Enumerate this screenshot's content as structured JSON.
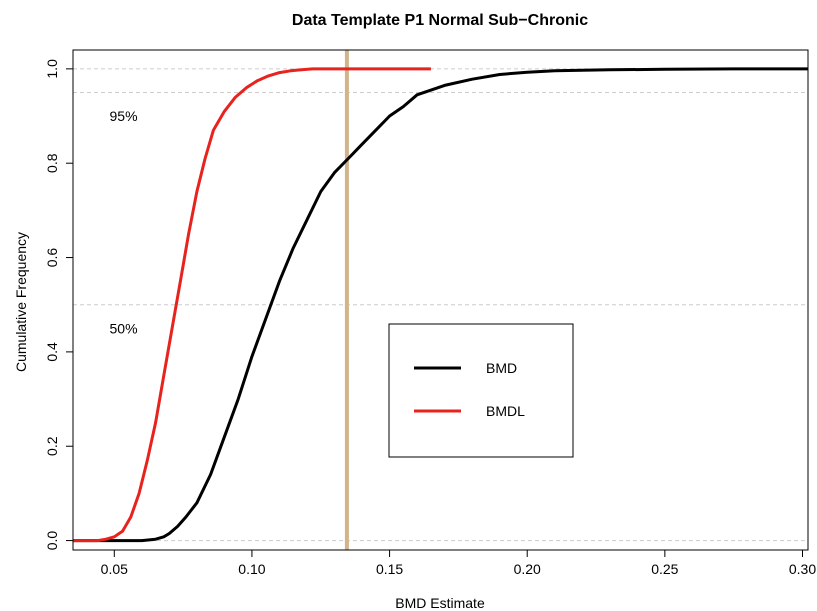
{
  "chart_data": {
    "type": "line",
    "title": "Data Template P1 Normal Sub−Chronic",
    "xlabel": "BMD Estimate",
    "ylabel": "Cumulative Frequency",
    "xlim": [
      0.035,
      0.302
    ],
    "ylim": [
      -0.02,
      1.04
    ],
    "xticks": [
      0.05,
      0.1,
      0.15,
      0.2,
      0.25,
      0.3
    ],
    "xtick_labels": [
      "0.05",
      "0.10",
      "0.15",
      "0.20",
      "0.25",
      "0.30"
    ],
    "yticks": [
      0.0,
      0.2,
      0.4,
      0.6,
      0.8,
      1.0
    ],
    "ytick_labels": [
      "0.0",
      "0.2",
      "0.4",
      "0.6",
      "0.8",
      "1.0"
    ],
    "reference_lines": {
      "horizontal": [
        0.0,
        0.5,
        0.95,
        1.0
      ],
      "horizontal_color": "#cccccc",
      "vertical_x": 0.1345,
      "vertical_color": "#d2b48c"
    },
    "annotations": [
      {
        "text": "95%",
        "x": 0.041,
        "y": 0.9
      },
      {
        "text": "50%",
        "x": 0.041,
        "y": 0.45
      }
    ],
    "legend": {
      "placement": "center",
      "entries": [
        {
          "name": "BMD",
          "color": "#000000"
        },
        {
          "name": "BMDL",
          "color": "#e8231e"
        }
      ]
    },
    "series": [
      {
        "name": "BMD",
        "color": "#000000",
        "x": [
          0.035,
          0.05,
          0.06,
          0.065,
          0.068,
          0.07,
          0.073,
          0.076,
          0.08,
          0.085,
          0.09,
          0.095,
          0.1,
          0.105,
          0.11,
          0.115,
          0.12,
          0.125,
          0.13,
          0.135,
          0.14,
          0.145,
          0.15,
          0.155,
          0.16,
          0.17,
          0.18,
          0.19,
          0.2,
          0.21,
          0.23,
          0.25,
          0.275,
          0.302
        ],
        "y": [
          0.0,
          0.0,
          0.0,
          0.003,
          0.008,
          0.015,
          0.03,
          0.05,
          0.08,
          0.14,
          0.22,
          0.3,
          0.39,
          0.47,
          0.55,
          0.62,
          0.68,
          0.74,
          0.78,
          0.81,
          0.84,
          0.87,
          0.9,
          0.92,
          0.945,
          0.965,
          0.978,
          0.988,
          0.993,
          0.996,
          0.998,
          0.999,
          1.0,
          1.0
        ]
      },
      {
        "name": "BMDL",
        "color": "#e8231e",
        "x": [
          0.035,
          0.044,
          0.047,
          0.05,
          0.053,
          0.056,
          0.059,
          0.062,
          0.065,
          0.068,
          0.071,
          0.074,
          0.077,
          0.08,
          0.083,
          0.086,
          0.09,
          0.094,
          0.098,
          0.102,
          0.106,
          0.11,
          0.114,
          0.118,
          0.122,
          0.14,
          0.165
        ],
        "y": [
          0.0,
          0.0,
          0.003,
          0.008,
          0.02,
          0.05,
          0.1,
          0.17,
          0.25,
          0.35,
          0.45,
          0.55,
          0.65,
          0.74,
          0.81,
          0.87,
          0.91,
          0.94,
          0.96,
          0.975,
          0.985,
          0.992,
          0.996,
          0.998,
          1.0,
          1.0,
          1.0
        ]
      }
    ]
  }
}
